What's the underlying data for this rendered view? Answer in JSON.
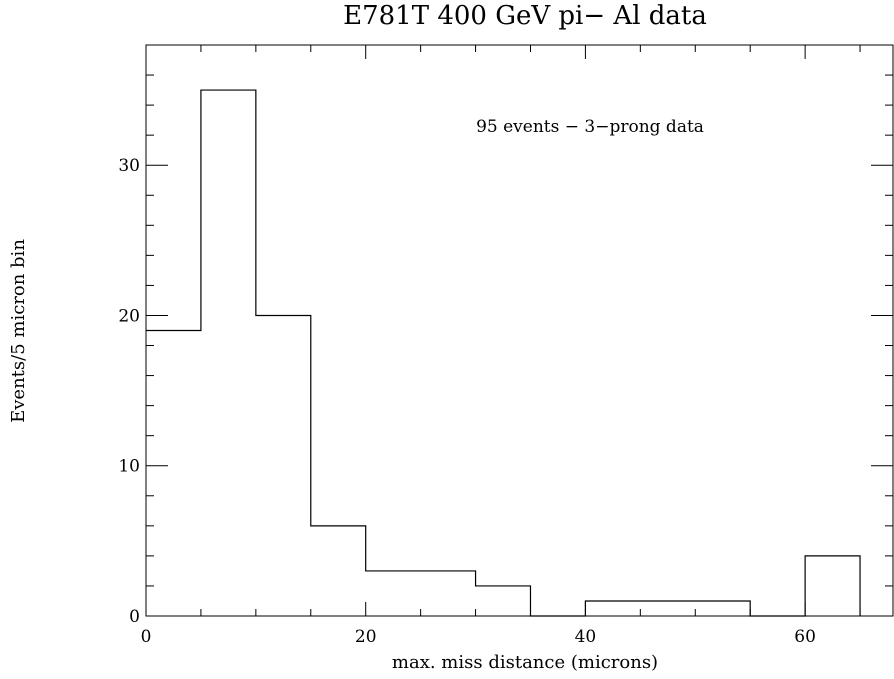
{
  "chart_data": {
    "type": "bar",
    "title": "E781T 400 GeV pi− Al data",
    "xlabel": "max. miss distance (microns)",
    "ylabel": "Events/5 micron bin",
    "annotation": "95 events − 3−prong data",
    "style": "histogram-step",
    "bin_width": 5,
    "bins": [
      {
        "x0": 0,
        "x1": 5,
        "value": 19
      },
      {
        "x0": 5,
        "x1": 10,
        "value": 35
      },
      {
        "x0": 10,
        "x1": 15,
        "value": 20
      },
      {
        "x0": 15,
        "x1": 20,
        "value": 6
      },
      {
        "x0": 20,
        "x1": 25,
        "value": 3
      },
      {
        "x0": 25,
        "x1": 30,
        "value": 3
      },
      {
        "x0": 30,
        "x1": 35,
        "value": 2
      },
      {
        "x0": 35,
        "x1": 40,
        "value": 0
      },
      {
        "x0": 40,
        "x1": 45,
        "value": 1
      },
      {
        "x0": 45,
        "x1": 50,
        "value": 1
      },
      {
        "x0": 50,
        "x1": 55,
        "value": 1
      },
      {
        "x0": 55,
        "x1": 60,
        "value": 0
      },
      {
        "x0": 60,
        "x1": 65,
        "value": 4
      }
    ],
    "xlim": [
      0,
      68
    ],
    "ylim": [
      0,
      38
    ],
    "x_ticks": [
      0,
      20,
      40,
      60
    ],
    "y_ticks": [
      0,
      10,
      20,
      30
    ],
    "grid": false,
    "line_color": "#000000"
  }
}
